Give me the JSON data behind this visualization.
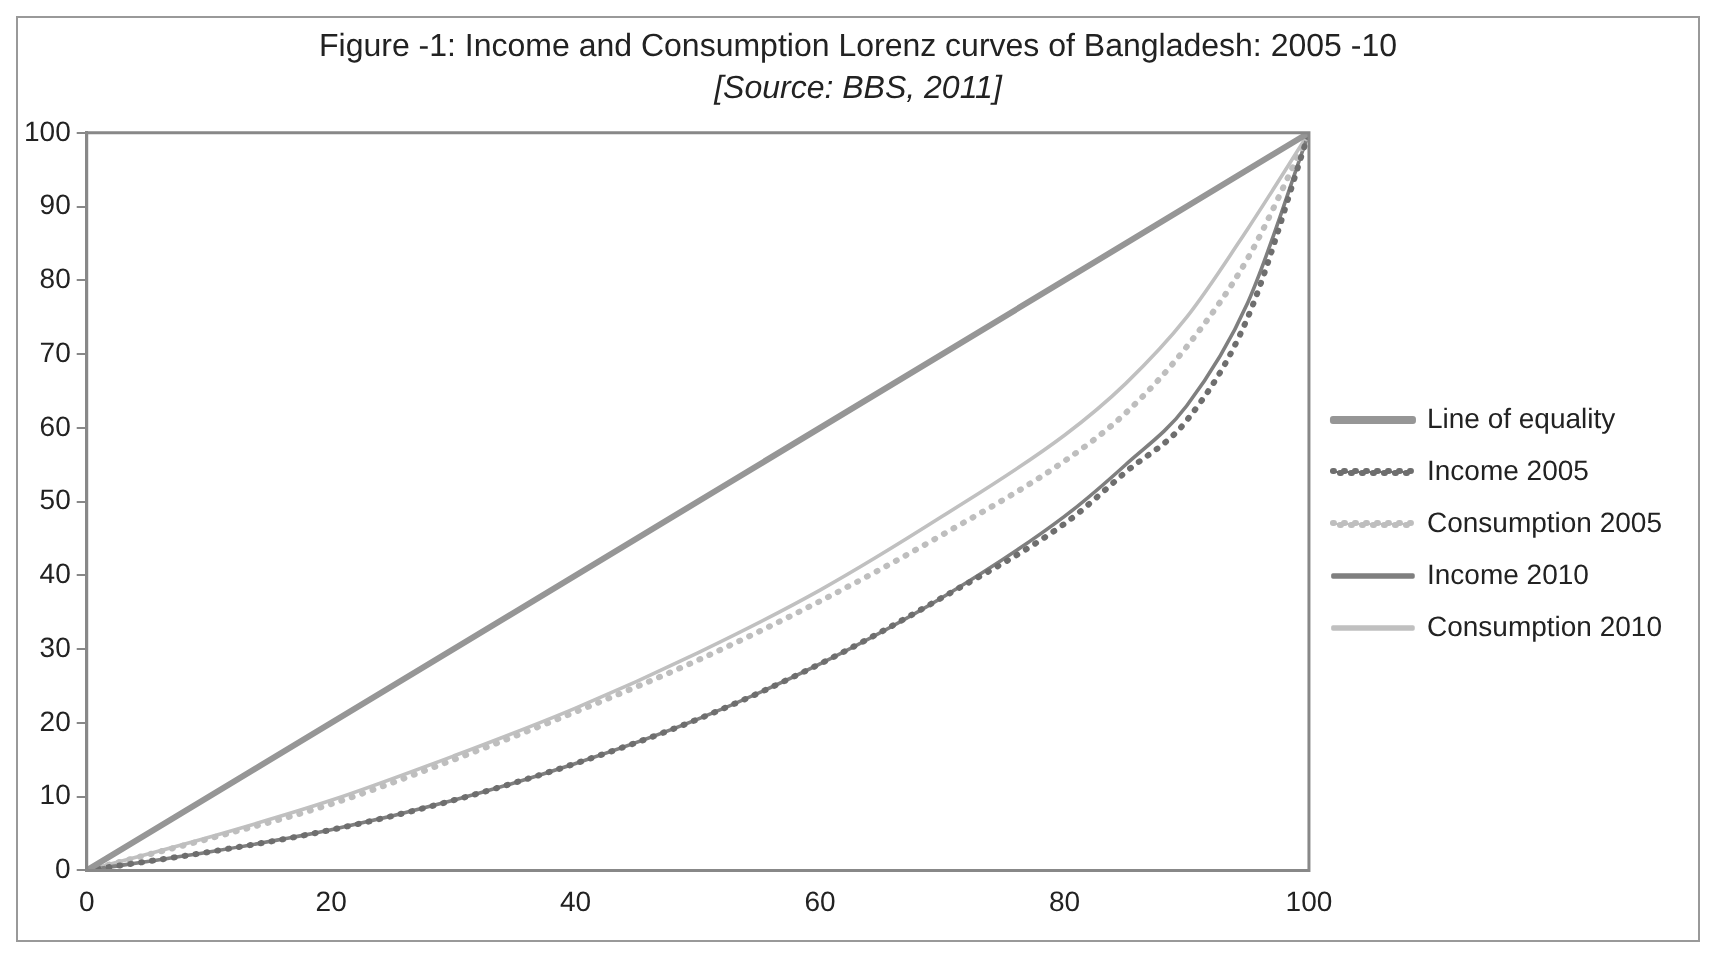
{
  "chart_data": {
    "type": "line",
    "title": "Figure -1: Income and Consumption Lorenz curves of Bangladesh: 2005 -10",
    "annotations": [
      "[Source:  BBS, 2011]"
    ],
    "xlim": [
      0,
      100
    ],
    "xticks": [
      0,
      20,
      40,
      60,
      80,
      100
    ],
    "ylim": [
      0,
      100
    ],
    "yticks": [
      0,
      10,
      20,
      30,
      40,
      50,
      60,
      70,
      80,
      90,
      100
    ],
    "grid": false,
    "legend": "right",
    "marker": "none",
    "series": [
      {
        "name": "Line of equality",
        "color": "#969696",
        "line_style": "solid",
        "x": [
          0,
          100
        ],
        "values": [
          0,
          100
        ]
      },
      {
        "name": "Income 2005",
        "color": "#6e6e6e",
        "line_style": "dotted",
        "x": [
          0,
          10,
          20,
          30,
          40,
          50,
          60,
          70,
          80,
          85,
          90,
          95,
          100
        ],
        "values": [
          0,
          2.5,
          5.5,
          9.5,
          14.5,
          20.5,
          28,
          37,
          47,
          54,
          61,
          75,
          100
        ]
      },
      {
        "name": "Consumption 2005",
        "color": "#bebebe",
        "line_style": "dotted",
        "x": [
          0,
          10,
          20,
          30,
          40,
          50,
          60,
          70,
          80,
          85,
          90,
          95,
          100
        ],
        "values": [
          0,
          4.3,
          9,
          15,
          21.5,
          28.5,
          36.5,
          45.5,
          55.5,
          62,
          71,
          83,
          100
        ]
      },
      {
        "name": "Income 2010",
        "color": "#7f7f7f",
        "line_style": "solid",
        "x": [
          0,
          10,
          20,
          30,
          40,
          50,
          60,
          70,
          80,
          85,
          90,
          95,
          100
        ],
        "values": [
          0,
          2.5,
          5.5,
          9.5,
          14.5,
          20.5,
          28,
          37,
          48,
          55,
          63,
          77,
          100
        ]
      },
      {
        "name": "Consumption 2010",
        "color": "#c0c0c0",
        "line_style": "solid",
        "x": [
          0,
          10,
          20,
          30,
          40,
          50,
          60,
          70,
          80,
          85,
          90,
          95,
          100
        ],
        "values": [
          0,
          4.5,
          9.5,
          15.5,
          22,
          29.5,
          38,
          48,
          59,
          66,
          75,
          87,
          100
        ]
      }
    ]
  }
}
